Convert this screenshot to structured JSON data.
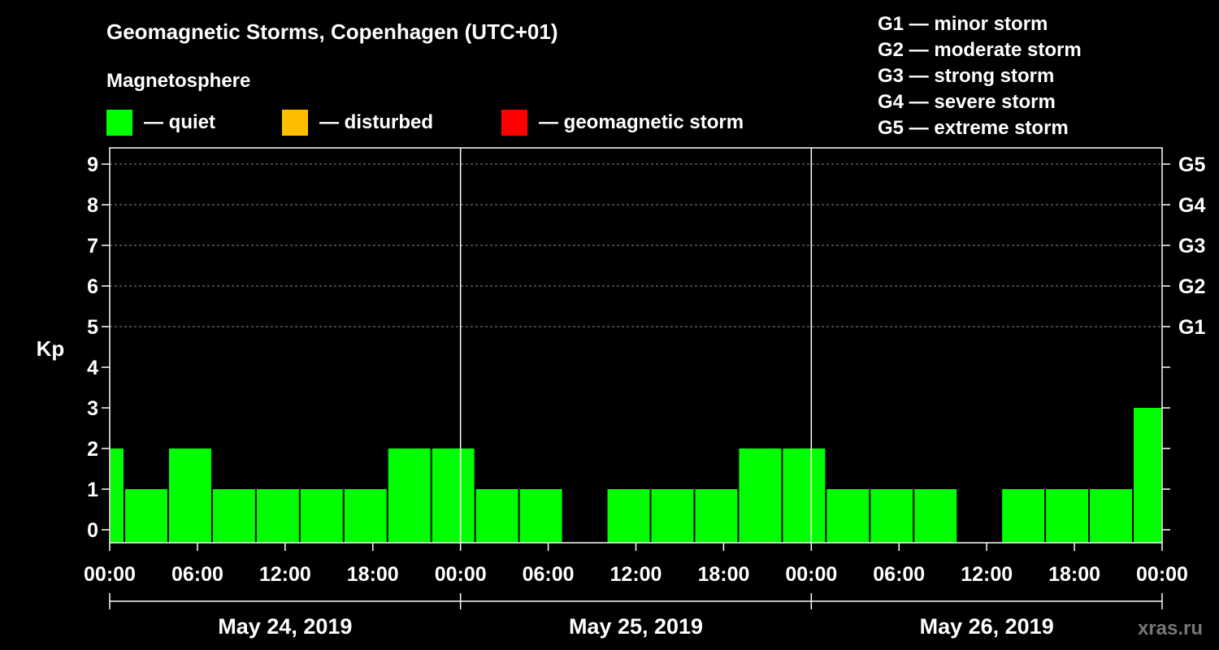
{
  "title": "Geomagnetic Storms, Copenhagen (UTC+01)",
  "subtitle": "Magnetosphere",
  "legend": [
    {
      "color": "#00ff00",
      "label": "— quiet"
    },
    {
      "color": "#ffbf00",
      "label": "— disturbed"
    },
    {
      "color": "#ff0000",
      "label": "— geomagnetic storm"
    }
  ],
  "storm_scale": [
    "G1 — minor storm",
    "G2 — moderate storm",
    "G3 — strong storm",
    "G4 — severe storm",
    "G5 — extreme storm"
  ],
  "watermark": "xras.ru",
  "chart_data": {
    "type": "bar",
    "title": "Geomagnetic Storms, Copenhagen (UTC+01)",
    "ylabel": "Kp",
    "ylim": [
      0,
      9
    ],
    "yticks": [
      0,
      1,
      2,
      3,
      4,
      5,
      6,
      7,
      8,
      9
    ],
    "right_axis_labels": [
      {
        "kp": 5,
        "label": "G1"
      },
      {
        "kp": 6,
        "label": "G2"
      },
      {
        "kp": 7,
        "label": "G3"
      },
      {
        "kp": 8,
        "label": "G4"
      },
      {
        "kp": 9,
        "label": "G5"
      }
    ],
    "grid": "horizontal dashed at Kp 5-9",
    "x_range_hours": [
      0,
      72
    ],
    "x_tick_labels": [
      "00:00",
      "06:00",
      "12:00",
      "18:00",
      "00:00",
      "06:00",
      "12:00",
      "18:00",
      "00:00",
      "06:00",
      "12:00",
      "18:00",
      "00:00"
    ],
    "days": [
      "May 24, 2019",
      "May 25, 2019",
      "May 26, 2019"
    ],
    "bar_color": "#00ff00",
    "bars": [
      {
        "start": 0,
        "end": 1,
        "kp": 2
      },
      {
        "start": 1,
        "end": 4,
        "kp": 1
      },
      {
        "start": 4,
        "end": 7,
        "kp": 2
      },
      {
        "start": 7,
        "end": 10,
        "kp": 1
      },
      {
        "start": 10,
        "end": 13,
        "kp": 1
      },
      {
        "start": 13,
        "end": 16,
        "kp": 1
      },
      {
        "start": 16,
        "end": 19,
        "kp": 1
      },
      {
        "start": 19,
        "end": 22,
        "kp": 2
      },
      {
        "start": 22,
        "end": 25,
        "kp": 2
      },
      {
        "start": 25,
        "end": 28,
        "kp": 1
      },
      {
        "start": 28,
        "end": 31,
        "kp": 1
      },
      {
        "start": 31,
        "end": 34,
        "kp": 0
      },
      {
        "start": 34,
        "end": 37,
        "kp": 1
      },
      {
        "start": 37,
        "end": 40,
        "kp": 1
      },
      {
        "start": 40,
        "end": 43,
        "kp": 1
      },
      {
        "start": 43,
        "end": 46,
        "kp": 2
      },
      {
        "start": 46,
        "end": 49,
        "kp": 2
      },
      {
        "start": 49,
        "end": 52,
        "kp": 1
      },
      {
        "start": 52,
        "end": 55,
        "kp": 1
      },
      {
        "start": 55,
        "end": 58,
        "kp": 1
      },
      {
        "start": 58,
        "end": 61,
        "kp": 0
      },
      {
        "start": 61,
        "end": 64,
        "kp": 1
      },
      {
        "start": 64,
        "end": 67,
        "kp": 1
      },
      {
        "start": 67,
        "end": 70,
        "kp": 1
      },
      {
        "start": 70,
        "end": 72,
        "kp": 3
      }
    ]
  }
}
